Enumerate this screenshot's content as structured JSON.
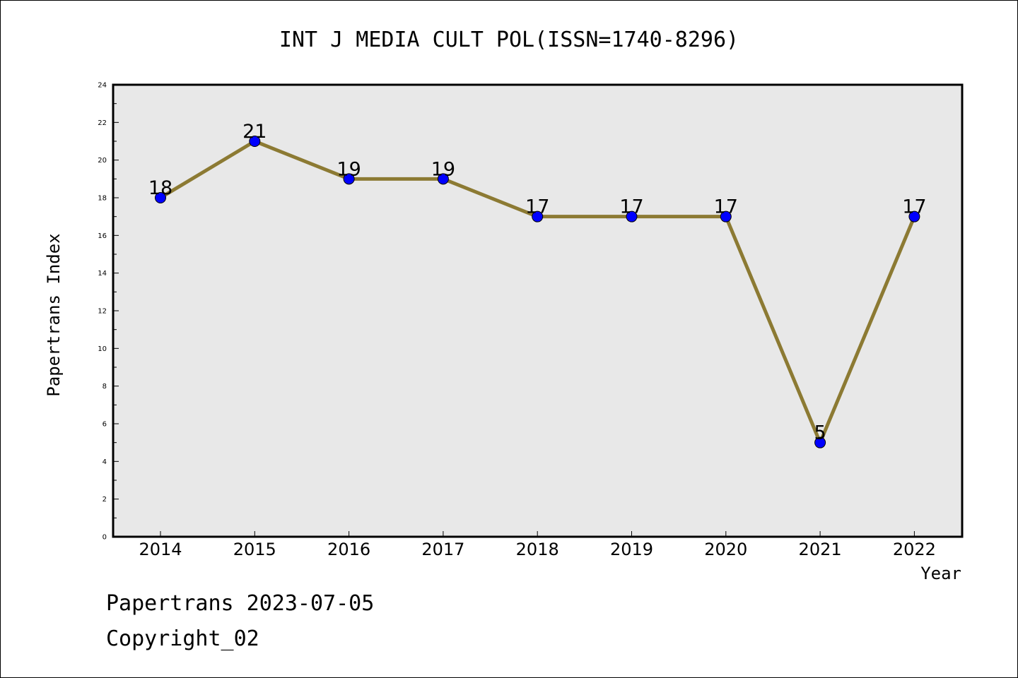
{
  "chart_data": {
    "type": "line",
    "title": "INT J MEDIA CULT POL(ISSN=1740-8296)",
    "xlabel": "Year",
    "ylabel": "Papertrans Index",
    "categories": [
      "2014",
      "2015",
      "2016",
      "2017",
      "2018",
      "2019",
      "2020",
      "2021",
      "2022"
    ],
    "series": [
      {
        "values": [
          18,
          21,
          19,
          19,
          17,
          17,
          17,
          5,
          17
        ]
      }
    ],
    "data_labels": [
      "18",
      "21",
      "19",
      "19",
      "17",
      "17",
      "17",
      "5",
      "17"
    ],
    "ylim": [
      0,
      24
    ],
    "y_ticks": [
      "0",
      "2",
      "4",
      "6",
      "8",
      "10",
      "12",
      "14",
      "16",
      "18",
      "20",
      "22",
      "24"
    ],
    "grid": false,
    "colors": {
      "line": "#8c7a33",
      "marker": "#0000ff",
      "plot_background": "#e8e8e8"
    }
  },
  "footer": {
    "line1": "Papertrans 2023-07-05",
    "line2": "Copyright_02"
  }
}
